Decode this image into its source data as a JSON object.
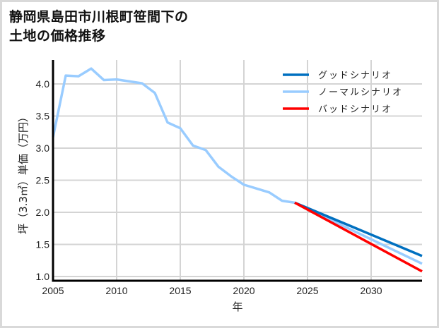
{
  "title_line1": "静岡県島田市川根町笹間下の",
  "title_line2": "土地の価格推移",
  "chart_data": {
    "type": "line",
    "title": "静岡県島田市川根町笹間下の土地の価格推移",
    "xlabel": "年",
    "ylabel": "坪（3.3㎡）単価（万円）",
    "xlim": [
      2005,
      2034
    ],
    "ylim": [
      0.95,
      4.35
    ],
    "x_ticks": [
      "2005",
      "2010",
      "2015",
      "2020",
      "2025",
      "2030"
    ],
    "y_ticks": [
      "1.0",
      "1.5",
      "2.0",
      "2.5",
      "3.0",
      "3.5",
      "4.0"
    ],
    "grid": true,
    "legend_position": "upper right",
    "series": [
      {
        "name": "ノーマルシナリオ",
        "color": "#99ccff",
        "x": [
          2005,
          2006,
          2007,
          2008,
          2009,
          2010,
          2011,
          2012,
          2013,
          2014,
          2015,
          2016,
          2017,
          2018,
          2019,
          2020,
          2021,
          2022,
          2023,
          2024,
          2034
        ],
        "values": [
          3.17,
          4.13,
          4.12,
          4.24,
          4.06,
          4.07,
          4.04,
          4.01,
          3.86,
          3.4,
          3.31,
          3.04,
          2.97,
          2.71,
          2.56,
          2.43,
          2.37,
          2.31,
          2.18,
          2.15,
          1.2
        ]
      },
      {
        "name": "グッドシナリオ",
        "color": "#0070c0",
        "x": [
          2024,
          2034
        ],
        "values": [
          2.15,
          1.32
        ]
      },
      {
        "name": "バッドシナリオ",
        "color": "#ff0000",
        "x": [
          2024,
          2034
        ],
        "values": [
          2.15,
          1.08
        ]
      }
    ]
  },
  "legend": [
    {
      "label": "グッドシナリオ",
      "color": "#0070c0"
    },
    {
      "label": "ノーマルシナリオ",
      "color": "#99ccff"
    },
    {
      "label": "バッドシナリオ",
      "color": "#ff0000"
    }
  ]
}
